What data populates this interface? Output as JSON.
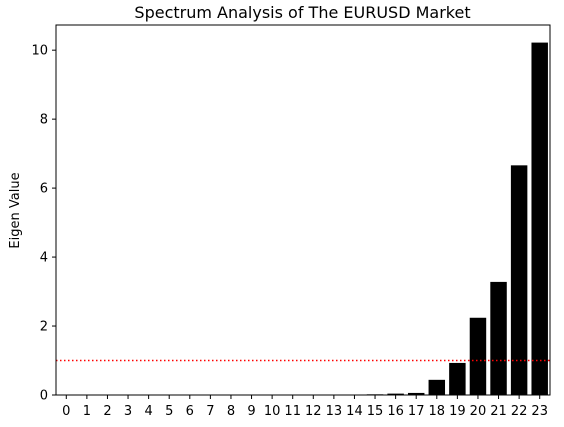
{
  "chart_data": {
    "type": "bar",
    "title": "Spectrum Analysis of The EURUSD Market",
    "xlabel": "",
    "ylabel": "Eigen Value",
    "categories": [
      "0",
      "1",
      "2",
      "3",
      "4",
      "5",
      "6",
      "7",
      "8",
      "9",
      "10",
      "11",
      "12",
      "13",
      "14",
      "15",
      "16",
      "17",
      "18",
      "19",
      "20",
      "21",
      "22",
      "23"
    ],
    "values": [
      0,
      0,
      0,
      0,
      0,
      0,
      0,
      0,
      0,
      0,
      0,
      0,
      0,
      0,
      0,
      0.02,
      0.04,
      0.06,
      0.44,
      0.93,
      2.24,
      3.28,
      6.66,
      10.22
    ],
    "ylim": [
      0,
      10.73
    ],
    "yticks": [
      0,
      2,
      4,
      6,
      8,
      10
    ],
    "bar_color": "#000000",
    "reference_line": {
      "y": 1,
      "color": "#ff0000",
      "style": "dotted"
    },
    "grid": false
  }
}
